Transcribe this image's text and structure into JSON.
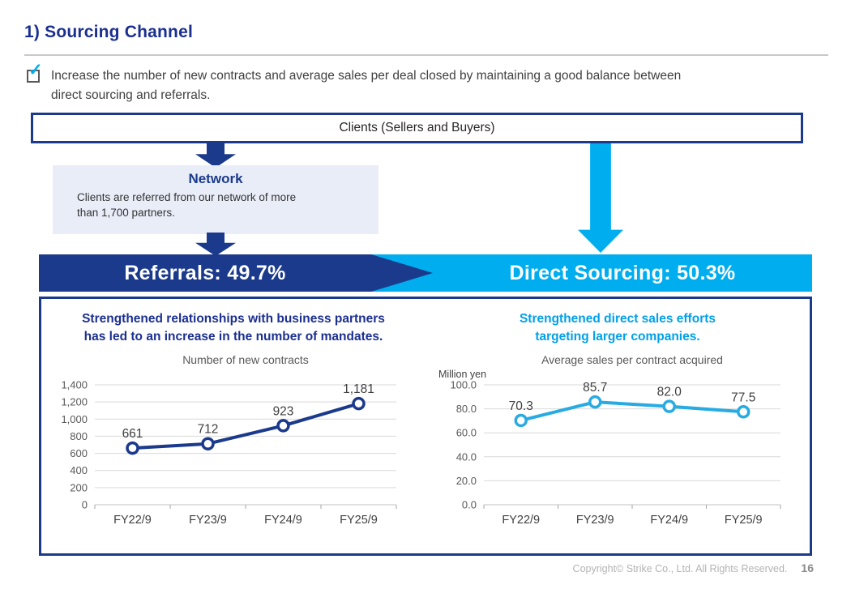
{
  "page": {
    "title": "1) Sourcing Channel",
    "bullet_lines": [
      "Increase the number of new contracts and average sales per deal closed by maintaining a good balance between",
      "direct sourcing and referrals."
    ],
    "footer": {
      "copyright": "Copyright© Strike Co., Ltd. All Rights Reserved.",
      "page_number": "16"
    }
  },
  "flow": {
    "clients_box_label": "Clients (Sellers and Buyers)",
    "network": {
      "title": "Network",
      "body_lines": [
        "Clients are referred from our network of more",
        "than 1,700 partners."
      ]
    },
    "referrals_banner": "Referrals: 49.7%",
    "direct_sourcing_banner": "Direct Sourcing: 50.3%"
  },
  "panels": {
    "left_headline_lines": [
      "Strengthened relationships with business partners",
      "has led to an increase in the number of mandates."
    ],
    "right_headline_lines": [
      "Strengthened direct sales efforts",
      "targeting larger companies."
    ]
  },
  "colors": {
    "navy": "#1B3A8C",
    "cyan": "#00AEEF",
    "headline_navy": "#1B2F90",
    "headline_cyan": "#00A0E9",
    "gridline": "#D9D9D9",
    "check": "#00AEEF"
  },
  "chart_data": [
    {
      "type": "line",
      "title": "Number of new contracts",
      "unit_label": "",
      "categories": [
        "FY22/9",
        "FY23/9",
        "FY24/9",
        "FY25/9"
      ],
      "values": [
        661,
        712,
        923,
        1181
      ],
      "point_labels": [
        "661",
        "712",
        "923",
        "1,181"
      ],
      "ylim": [
        0,
        1400
      ],
      "ytick_labels": [
        "0",
        "200",
        "400",
        "600",
        "800",
        "1,000",
        "1,200",
        "1,400"
      ],
      "line_color": "#1B3A8C",
      "marker": "circle-open",
      "grid": true,
      "legend": "none"
    },
    {
      "type": "line",
      "title": "Average sales per contract acquired",
      "unit_label": "Million yen",
      "categories": [
        "FY22/9",
        "FY23/9",
        "FY24/9",
        "FY25/9"
      ],
      "values": [
        70.3,
        85.7,
        82.0,
        77.5
      ],
      "point_labels": [
        "70.3",
        "85.7",
        "82.0",
        "77.5"
      ],
      "ylim": [
        0,
        100
      ],
      "ytick_labels": [
        "0.0",
        "20.0",
        "40.0",
        "60.0",
        "80.0",
        "100.0"
      ],
      "line_color": "#29ABE2",
      "marker": "circle-open",
      "grid": true,
      "legend": "none"
    }
  ]
}
